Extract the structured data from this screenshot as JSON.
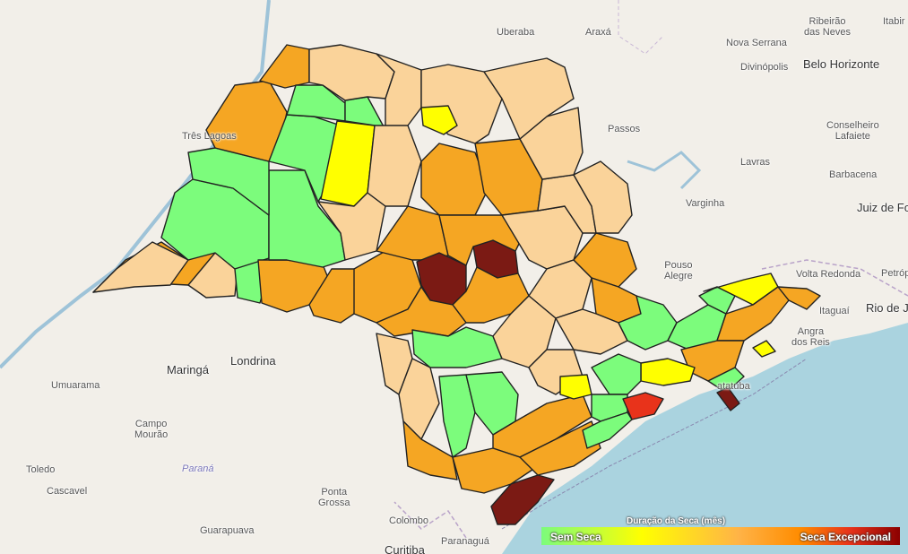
{
  "map": {
    "colors": {
      "no_drought": "#7cfc7c",
      "light": "#ffff00",
      "moderate": "#fad39a",
      "severe": "#f5a623",
      "extreme": "#e8331b",
      "exceptional": "#7b1a14"
    }
  },
  "cities": [
    {
      "id": "uberaba",
      "name": "Uberaba"
    },
    {
      "id": "araxa",
      "name": "Araxá"
    },
    {
      "id": "ribeirao-das-neves",
      "name": "Ribeirão\ndas Neves"
    },
    {
      "id": "itabira",
      "name": "Itabir"
    },
    {
      "id": "nova-serrana",
      "name": "Nova Serrana"
    },
    {
      "id": "divinopolis",
      "name": "Divinópolis"
    },
    {
      "id": "belo-horizonte",
      "name": "Belo Horizonte"
    },
    {
      "id": "tres-lagoas",
      "name": "Três Lagoas"
    },
    {
      "id": "passos",
      "name": "Passos"
    },
    {
      "id": "conselheiro-lafaiete",
      "name": "Conselheiro\nLafaiete"
    },
    {
      "id": "lavras",
      "name": "Lavras"
    },
    {
      "id": "barbacena",
      "name": "Barbacena"
    },
    {
      "id": "varginha",
      "name": "Varginha"
    },
    {
      "id": "juiz-de-fora",
      "name": "Juiz de Fo"
    },
    {
      "id": "pouso-alegre",
      "name": "Pouso\nAlegre"
    },
    {
      "id": "volta-redonda",
      "name": "Volta Redonda"
    },
    {
      "id": "petropolis",
      "name": "Petróp"
    },
    {
      "id": "itaguai",
      "name": "Itaguaí"
    },
    {
      "id": "rio-de-janeiro",
      "name": "Rio de Ja"
    },
    {
      "id": "angra-dos-reis",
      "name": "Angra\ndos Reis"
    },
    {
      "id": "maringa",
      "name": "Maringá"
    },
    {
      "id": "londrina",
      "name": "Londrina"
    },
    {
      "id": "umuarama",
      "name": "Umuarama"
    },
    {
      "id": "campo-mourao",
      "name": "Campo\nMourão"
    },
    {
      "id": "parana",
      "name": "Paraná"
    },
    {
      "id": "toledo",
      "name": "Toledo"
    },
    {
      "id": "cascavel",
      "name": "Cascavel"
    },
    {
      "id": "guarapuava",
      "name": "Guarapuava"
    },
    {
      "id": "ponta-grossa",
      "name": "Ponta\nGrossa"
    },
    {
      "id": "colombo",
      "name": "Colombo"
    },
    {
      "id": "paranagua",
      "name": "Paranaguá"
    },
    {
      "id": "curitiba",
      "name": "Curitiba"
    },
    {
      "id": "ubatuba",
      "name": "atatuba"
    }
  ],
  "legend": {
    "title": "Duração da Seca (mês)",
    "min_label": "Sem Seca",
    "max_label": "Seca Excepcional"
  }
}
